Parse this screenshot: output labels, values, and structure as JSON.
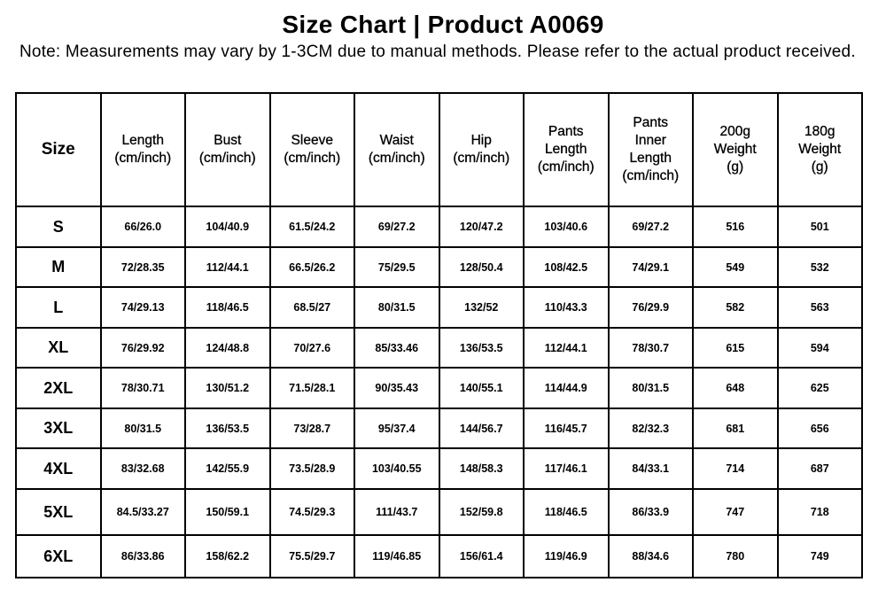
{
  "title": "Size Chart | Product A0069",
  "note": "Note: Measurements may vary by 1-3CM due to manual methods. Please refer to the actual product received.",
  "table": {
    "headers": [
      "Size",
      "Length (cm/inch)",
      "Bust (cm/inch)",
      "Sleeve (cm/inch)",
      "Waist (cm/inch)",
      "Hip (cm/inch)",
      "Pants Length (cm/inch)",
      "Pants Inner Length (cm/inch)",
      "200g Weight (g)",
      "180g Weight (g)"
    ],
    "rows": [
      [
        "S",
        "66/26.0",
        "104/40.9",
        "61.5/24.2",
        "69/27.2",
        "120/47.2",
        "103/40.6",
        "69/27.2",
        "516",
        "501"
      ],
      [
        "M",
        "72/28.35",
        "112/44.1",
        "66.5/26.2",
        "75/29.5",
        "128/50.4",
        "108/42.5",
        "74/29.1",
        "549",
        "532"
      ],
      [
        "L",
        "74/29.13",
        "118/46.5",
        "68.5/27",
        "80/31.5",
        "132/52",
        "110/43.3",
        "76/29.9",
        "582",
        "563"
      ],
      [
        "XL",
        "76/29.92",
        "124/48.8",
        "70/27.6",
        "85/33.46",
        "136/53.5",
        "112/44.1",
        "78/30.7",
        "615",
        "594"
      ],
      [
        "2XL",
        "78/30.71",
        "130/51.2",
        "71.5/28.1",
        "90/35.43",
        "140/55.1",
        "114/44.9",
        "80/31.5",
        "648",
        "625"
      ],
      [
        "3XL",
        "80/31.5",
        "136/53.5",
        "73/28.7",
        "95/37.4",
        "144/56.7",
        "116/45.7",
        "82/32.3",
        "681",
        "656"
      ],
      [
        "4XL",
        "83/32.68",
        "142/55.9",
        "73.5/28.9",
        "103/40.55",
        "148/58.3",
        "117/46.1",
        "84/33.1",
        "714",
        "687"
      ],
      [
        "5XL",
        "84.5/33.27",
        "150/59.1",
        "74.5/29.3",
        "111/43.7",
        "152/59.8",
        "118/46.5",
        "86/33.9",
        "747",
        "718"
      ],
      [
        "6XL",
        "86/33.86",
        "158/62.2",
        "75.5/29.7",
        "119/46.85",
        "156/61.4",
        "119/46.9",
        "88/34.6",
        "780",
        "749"
      ]
    ]
  }
}
